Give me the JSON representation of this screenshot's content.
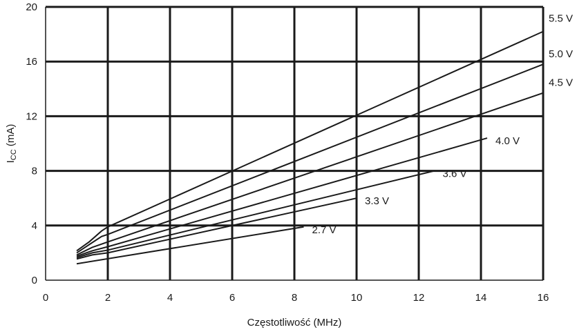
{
  "chart_data": {
    "type": "line",
    "title": "",
    "xlabel": "Częstotliwość (MHz)",
    "ylabel_main": "I",
    "ylabel_sub": "CC",
    "ylabel_unit": " (mA)",
    "xlim": [
      0,
      16
    ],
    "ylim": [
      0,
      20
    ],
    "xticks": [
      0,
      2,
      4,
      6,
      8,
      10,
      12,
      14,
      16
    ],
    "yticks": [
      0,
      4,
      8,
      12,
      16,
      20
    ],
    "grid": true,
    "series": [
      {
        "name": "5.5 V",
        "points": [
          [
            1,
            2.15
          ],
          [
            1.4,
            2.8
          ],
          [
            1.8,
            3.6
          ],
          [
            2,
            3.9
          ],
          [
            16,
            18.2
          ]
        ]
      },
      {
        "name": "5.0 V",
        "points": [
          [
            1,
            2.0
          ],
          [
            1.4,
            2.6
          ],
          [
            1.8,
            3.2
          ],
          [
            2,
            3.35
          ],
          [
            16,
            15.8
          ]
        ]
      },
      {
        "name": "4.5 V",
        "points": [
          [
            1,
            1.85
          ],
          [
            1.5,
            2.4
          ],
          [
            2,
            2.8
          ],
          [
            16,
            13.7
          ]
        ]
      },
      {
        "name": "4.0 V",
        "points": [
          [
            1,
            1.75
          ],
          [
            1.5,
            2.15
          ],
          [
            2,
            2.45
          ],
          [
            14.2,
            10.4
          ]
        ]
      },
      {
        "name": "3.6 V",
        "points": [
          [
            1,
            1.65
          ],
          [
            1.5,
            2.0
          ],
          [
            2,
            2.2
          ],
          [
            12.5,
            8.0
          ]
        ]
      },
      {
        "name": "3.3 V",
        "points": [
          [
            1,
            1.55
          ],
          [
            1.5,
            1.85
          ],
          [
            2,
            2.0
          ],
          [
            10,
            6.0
          ]
        ]
      },
      {
        "name": "2.7 V",
        "points": [
          [
            1,
            1.2
          ],
          [
            8.3,
            3.9
          ]
        ]
      }
    ]
  }
}
